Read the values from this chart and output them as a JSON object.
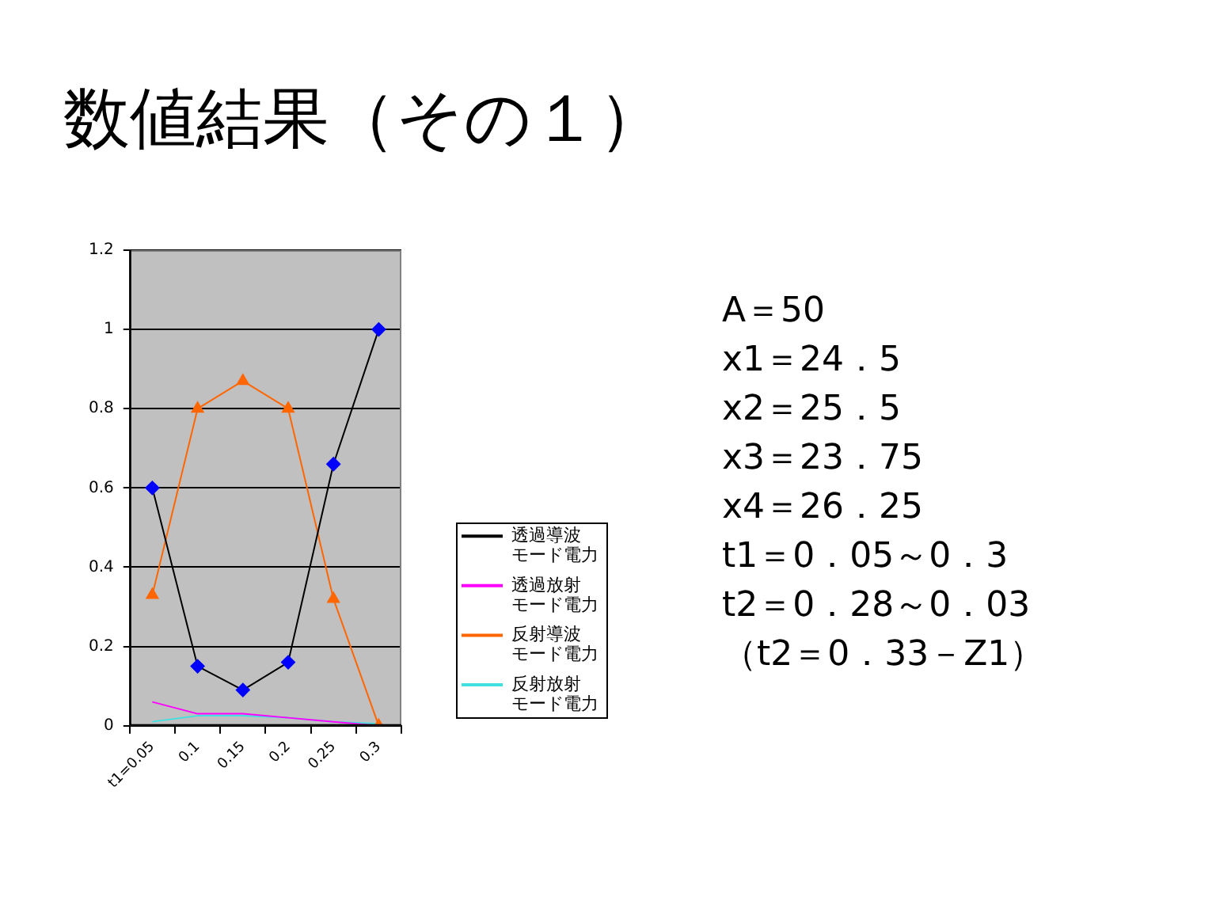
{
  "chart_data": {
    "type": "line",
    "title": "数値結果（その１）",
    "categories": [
      "t1=0.05",
      "0.1",
      "0.15",
      "0.2",
      "0.25",
      "0.3"
    ],
    "series": [
      {
        "name": "透過導波モード電力",
        "color": "#000000",
        "colors": [
          "#0000ff",
          "#0000ff",
          "#0000ff",
          "#0000ff",
          "#0000ff",
          "#0000ff"
        ],
        "marker": "diamond",
        "values": [
          0.6,
          0.15,
          0.09,
          0.16,
          0.66,
          1.0
        ]
      },
      {
        "name": "透過放射モード電力",
        "color": "#ff00ff",
        "marker": "none",
        "values": [
          0.06,
          0.03,
          0.03,
          0.02,
          0.01,
          0.0
        ]
      },
      {
        "name": "反射導波モード電力",
        "color": "#ff6600",
        "marker": "triangle",
        "values": [
          0.33,
          0.8,
          0.87,
          0.8,
          0.32,
          0.0
        ]
      },
      {
        "name": "反射放射モード電力",
        "color": "#40e0e0",
        "marker": "none",
        "values": [
          0.01,
          0.025,
          0.025,
          0.02,
          0.01,
          0.005
        ]
      }
    ],
    "ylim": [
      0,
      1.2
    ],
    "yticks": [
      0,
      0.2,
      0.4,
      0.6,
      0.8,
      1,
      1.2
    ],
    "grid": "y",
    "legend": "right",
    "annotations": [
      "A＝50",
      "x1＝24．5",
      "x2＝25．5",
      "x3＝23．75",
      "x4＝26．25",
      "t1＝0．05～0．3",
      "t2＝0．28～0．03",
      "（t2＝0．33－Z1）"
    ]
  }
}
